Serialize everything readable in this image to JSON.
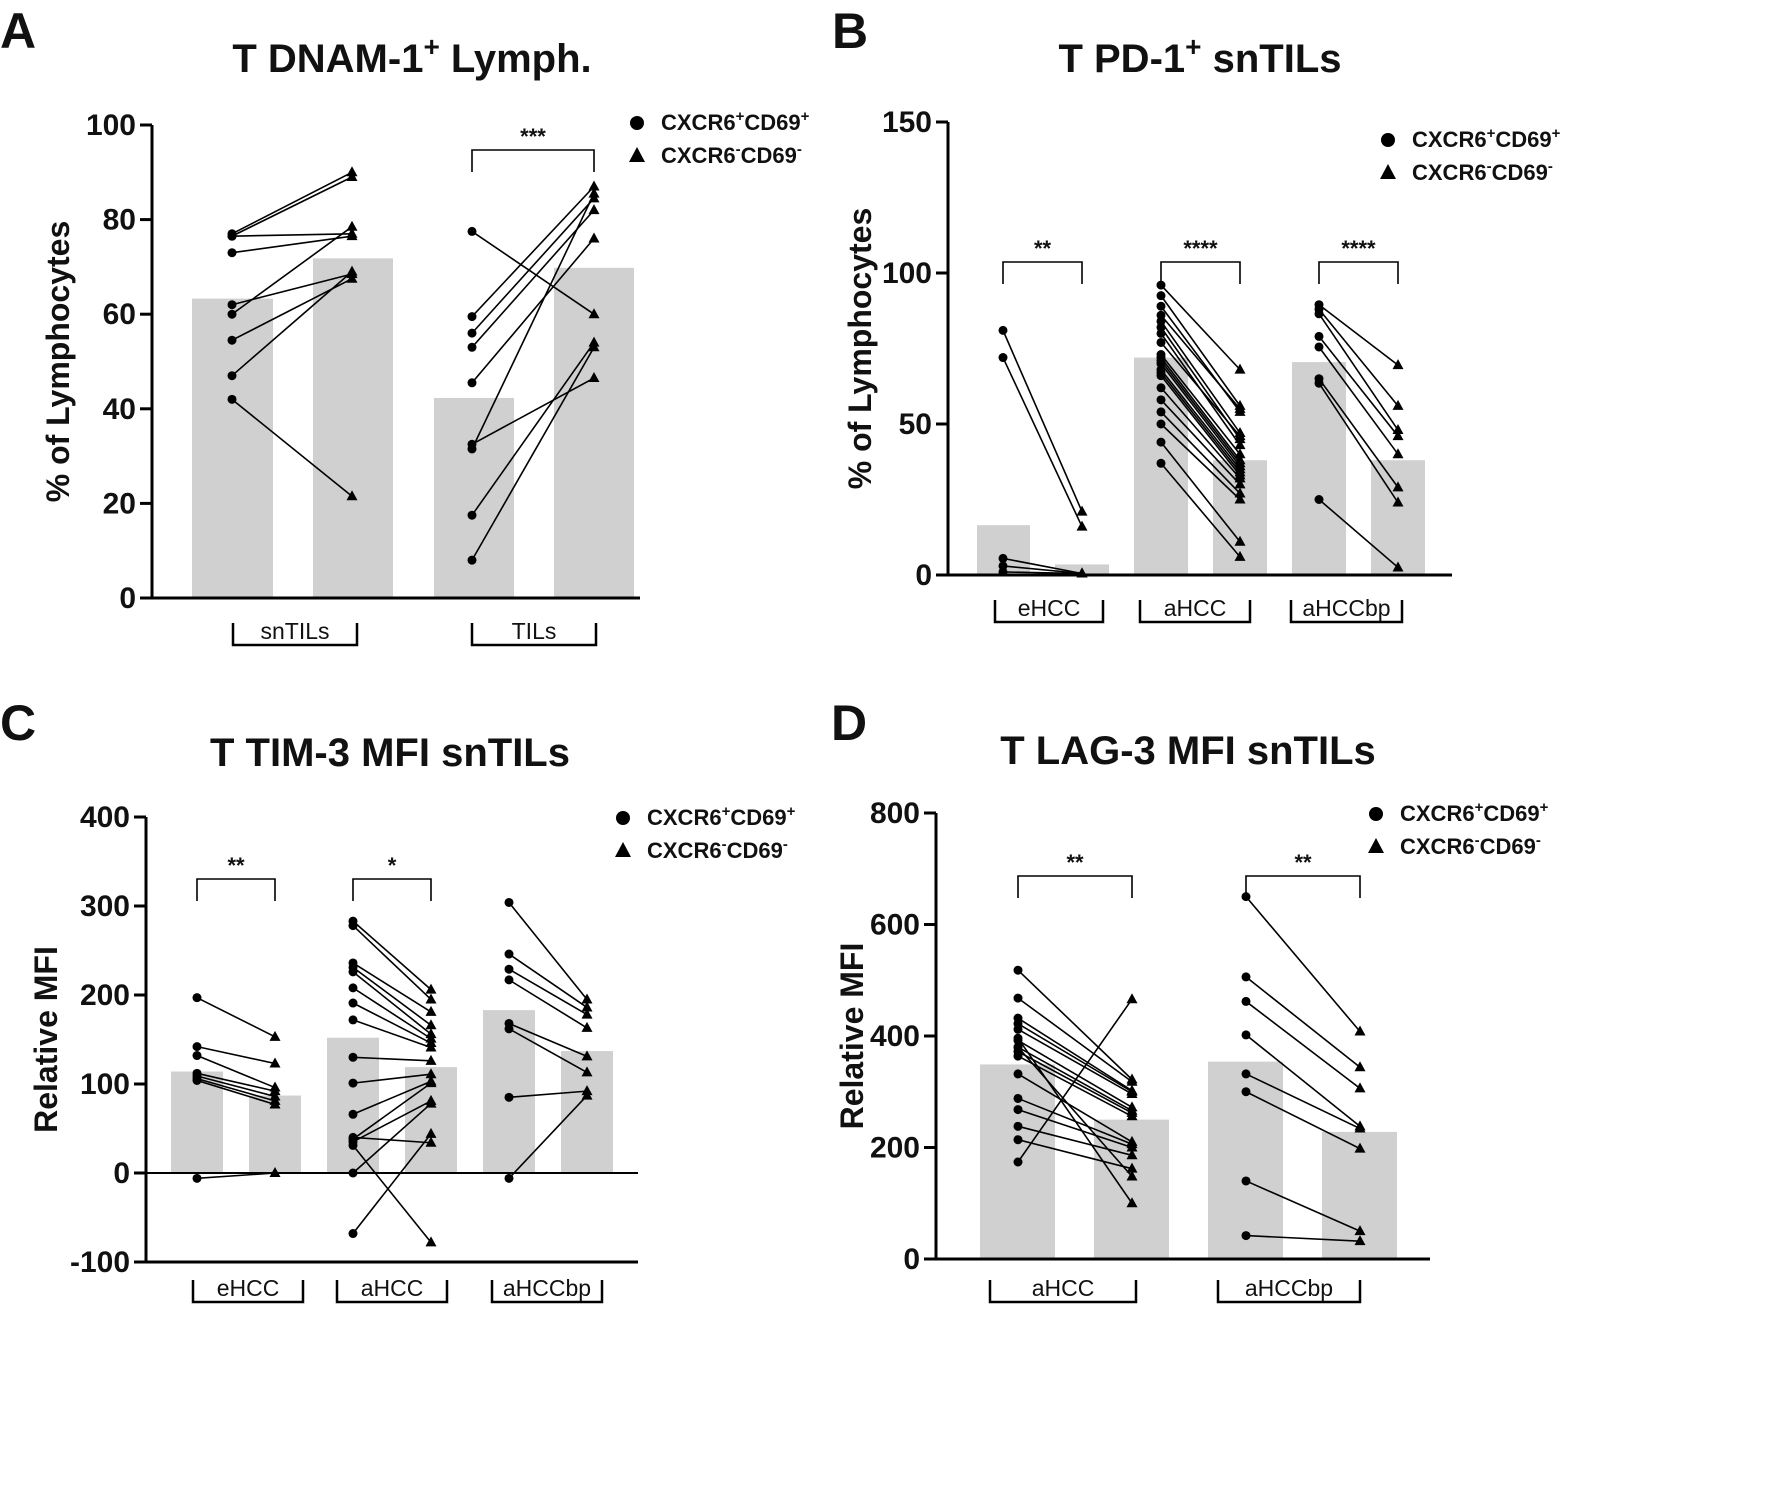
{
  "chart_data": [
    {
      "panel_label": "A",
      "type": "bar",
      "title": "T DNAM-1",
      "title_sup": "+",
      "title_tail": " Lymph.",
      "ylabel": "% of Lymphocytes",
      "ylim": [
        0,
        100
      ],
      "yticks": [
        "0",
        "20",
        "40",
        "60",
        "80",
        "100"
      ],
      "legend": {
        "series1": "CXCR6",
        "series1_sup1": "+",
        "series1_mid": "CD69",
        "series1_sup2": "+",
        "series2": "CXCR6",
        "series2_sup1": "-",
        "series2_mid": "CD69",
        "series2_sup2": "-"
      },
      "groups": [
        {
          "label": "snTILs",
          "bars": [
            63.3,
            71.8
          ],
          "pairs": [
            [
              77,
              90
            ],
            [
              76.5,
              89
            ],
            [
              76.5,
              77
            ],
            [
              73,
              76.5
            ],
            [
              62,
              68.5
            ],
            [
              60,
              78.5
            ],
            [
              54.5,
              67.5
            ],
            [
              47,
              69
            ],
            [
              42,
              21.5
            ]
          ],
          "sig": ""
        },
        {
          "label": "TILs",
          "bars": [
            42.3,
            69.8
          ],
          "pairs": [
            [
              77.5,
              60
            ],
            [
              59.5,
              87
            ],
            [
              56,
              84.5
            ],
            [
              53,
              82
            ],
            [
              45.5,
              76
            ],
            [
              32.5,
              46.5
            ],
            [
              31.5,
              85.5
            ],
            [
              17.5,
              54
            ],
            [
              8,
              53
            ]
          ],
          "sig": "***"
        }
      ]
    },
    {
      "panel_label": "B",
      "type": "bar",
      "title": "T PD-1",
      "title_sup": "+",
      "title_tail": " snTILs",
      "ylabel": "% of Lymphocytes",
      "ylim": [
        0,
        150
      ],
      "yticks": [
        "0",
        "50",
        "100",
        "150"
      ],
      "legend": {
        "series1": "CXCR6",
        "series1_sup1": "+",
        "series1_mid": "CD69",
        "series1_sup2": "+",
        "series2": "CXCR6",
        "series2_sup1": "-",
        "series2_mid": "CD69",
        "series2_sup2": "-"
      },
      "groups": [
        {
          "label": "eHCC",
          "bars": [
            16.5,
            3.5
          ],
          "pairs": [
            [
              81,
              21
            ],
            [
              72,
              16
            ],
            [
              5.5,
              0.5
            ],
            [
              3,
              0.5
            ],
            [
              1,
              0.5
            ]
          ],
          "sig": "**"
        },
        {
          "label": "aHCC",
          "bars": [
            72,
            38
          ],
          "pairs": [
            [
              96,
              68
            ],
            [
              92.5,
              56
            ],
            [
              89,
              54
            ],
            [
              86,
              55
            ],
            [
              84,
              47
            ],
            [
              82,
              45
            ],
            [
              80,
              43
            ],
            [
              77,
              46
            ],
            [
              73,
              40
            ],
            [
              72,
              38
            ],
            [
              71,
              37
            ],
            [
              70,
              36
            ],
            [
              68,
              35
            ],
            [
              67,
              34
            ],
            [
              66,
              33
            ],
            [
              62,
              32
            ],
            [
              58,
              30
            ],
            [
              54,
              27
            ],
            [
              50,
              25
            ],
            [
              44,
              11
            ],
            [
              37,
              6
            ]
          ],
          "sig": "****"
        },
        {
          "label": "aHCCbp",
          "bars": [
            70.5,
            38
          ],
          "pairs": [
            [
              89.5,
              69.5
            ],
            [
              88,
              56
            ],
            [
              86.5,
              48
            ],
            [
              79,
              46
            ],
            [
              75.5,
              40
            ],
            [
              65,
              29
            ],
            [
              63.5,
              24
            ],
            [
              25,
              2.5
            ]
          ],
          "sig": "****"
        }
      ]
    },
    {
      "panel_label": "C",
      "type": "bar",
      "title": "T TIM-3 MFI snTILs",
      "ylabel": "Relative MFI",
      "ylim": [
        -100,
        400
      ],
      "yticks": [
        "-100",
        "0",
        "100",
        "200",
        "300",
        "400"
      ],
      "legend": {
        "series1": "CXCR6",
        "series1_sup1": "+",
        "series1_mid": "CD69",
        "series1_sup2": "+",
        "series2": "CXCR6",
        "series2_sup1": "-",
        "series2_mid": "CD69",
        "series2_sup2": "-"
      },
      "groups": [
        {
          "label": "eHCC",
          "bars": [
            114,
            87
          ],
          "pairs": [
            [
              197,
              153
            ],
            [
              142,
              123
            ],
            [
              132,
              96
            ],
            [
              112,
              92
            ],
            [
              109,
              86
            ],
            [
              106,
              81
            ],
            [
              104,
              77
            ],
            [
              -6,
              0
            ]
          ],
          "sig": "**"
        },
        {
          "label": "aHCC",
          "bars": [
            152,
            119
          ],
          "pairs": [
            [
              283,
              206
            ],
            [
              278,
              195
            ],
            [
              236,
              181
            ],
            [
              231,
              166
            ],
            [
              226,
              156
            ],
            [
              208,
              151
            ],
            [
              191,
              146
            ],
            [
              172,
              141
            ],
            [
              130,
              126
            ],
            [
              101,
              111
            ],
            [
              66,
              103
            ],
            [
              38,
              101
            ],
            [
              35,
              81
            ],
            [
              0,
              78
            ],
            [
              -68,
              44
            ],
            [
              31,
              -78
            ],
            [
              40,
              34
            ]
          ],
          "sig": "*"
        },
        {
          "label": "aHCCbp",
          "bars": [
            183,
            137
          ],
          "pairs": [
            [
              304,
              195
            ],
            [
              246,
              186
            ],
            [
              229,
              178
            ],
            [
              217,
              163
            ],
            [
              168,
              131
            ],
            [
              162,
              113
            ],
            [
              85,
              92
            ],
            [
              -6,
              87
            ]
          ],
          "sig": ""
        }
      ]
    },
    {
      "panel_label": "D",
      "type": "bar",
      "title": "T LAG-3 MFI snTILs",
      "ylabel": "Relative MFI",
      "ylim": [
        0,
        800
      ],
      "yticks": [
        "0",
        "200",
        "400",
        "600",
        "800"
      ],
      "legend": {
        "series1": "CXCR6",
        "series1_sup1": "+",
        "series1_mid": "CD69",
        "series1_sup2": "+",
        "series2": "CXCR6",
        "series2_sup1": "-",
        "series2_mid": "CD69",
        "series2_sup2": "-"
      },
      "groups": [
        {
          "label": "aHCC",
          "bars": [
            349,
            250
          ],
          "pairs": [
            [
              518,
              322
            ],
            [
              468,
              318
            ],
            [
              432,
              302
            ],
            [
              422,
              300
            ],
            [
              412,
              296
            ],
            [
              392,
              272
            ],
            [
              380,
              266
            ],
            [
              372,
              262
            ],
            [
              364,
              256
            ],
            [
              332,
              210
            ],
            [
              288,
              206
            ],
            [
              268,
              200
            ],
            [
              238,
              186
            ],
            [
              214,
              162
            ],
            [
              174,
              466
            ],
            [
              380,
              148
            ],
            [
              396,
              100
            ]
          ],
          "sig": "**"
        },
        {
          "label": "aHCCbp",
          "bars": [
            354,
            228
          ],
          "pairs": [
            [
              650,
              408
            ],
            [
              506,
              344
            ],
            [
              462,
              306
            ],
            [
              402,
              238
            ],
            [
              332,
              234
            ],
            [
              300,
              198
            ],
            [
              140,
              50
            ],
            [
              42,
              32
            ]
          ],
          "sig": "**"
        }
      ]
    }
  ]
}
